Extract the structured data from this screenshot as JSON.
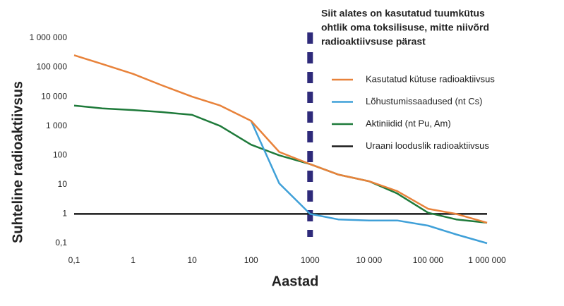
{
  "chart_data": {
    "type": "line",
    "x_label": "Aastad",
    "y_label": "Suhteline radioaktiivsus",
    "annotation": {
      "lines": [
        "Siit alates on kasutatud tuumkütus",
        "ohtlik oma toksilisuse, mitte niivõrd",
        "radioaktiivsuse pärast"
      ],
      "x": 1000,
      "color": "#2e2a7a"
    },
    "log_x": true,
    "log_y": true,
    "grid": false,
    "legend": "right",
    "x": [
      0.1,
      0.3,
      1,
      3,
      10,
      30,
      100,
      300,
      1000,
      3000,
      10000,
      30000,
      100000,
      300000,
      1000000
    ],
    "series": [
      {
        "name": "Kasutatud kütuse radioaktiivsus",
        "color": "#e8823a",
        "values": [
          260000,
          130000,
          60000,
          25000,
          10000,
          5000,
          1500,
          130,
          50,
          22,
          13,
          6,
          1.5,
          1,
          0.5
        ]
      },
      {
        "name": "Lõhustumissaadused (nt Cs)",
        "color": "#3fa0d8",
        "values": [
          null,
          null,
          null,
          null,
          null,
          null,
          1500,
          11,
          1,
          0.65,
          0.6,
          0.6,
          0.4,
          0.2,
          0.1
        ]
      },
      {
        "name": "Aktiniidid (nt Pu, Am)",
        "color": "#1e7a3a",
        "values": [
          5000,
          4000,
          3500,
          3000,
          2400,
          1000,
          230,
          100,
          50,
          22,
          13,
          5,
          1.1,
          0.65,
          0.5
        ]
      },
      {
        "name": "Uraani looduslik radioaktiivsus",
        "color": "#1a1a1a",
        "values": [
          1,
          1,
          1,
          1,
          1,
          1,
          1,
          1,
          1,
          1,
          1,
          1,
          1,
          1,
          1
        ]
      }
    ],
    "xlim": [
      0.1,
      1000000
    ],
    "ylim": [
      0.1,
      1000000
    ],
    "xticks": [
      {
        "value": 0.1,
        "label": "0,1"
      },
      1,
      10,
      100,
      {
        "value": 1000,
        "label": "1000"
      },
      {
        "value": 10000,
        "label": "10 000"
      },
      {
        "value": 100000,
        "label": "100 000"
      },
      {
        "value": 1000000,
        "label": "1 000 000"
      }
    ],
    "yticks": [
      {
        "value": 0.1,
        "label": "0,1"
      },
      1,
      10,
      100,
      {
        "value": 1000,
        "label": "1 000"
      },
      {
        "value": 10000,
        "label": "10 000"
      },
      {
        "value": 100000,
        "label": "100 000"
      },
      {
        "value": 1000000,
        "label": "1 000 000"
      }
    ]
  }
}
